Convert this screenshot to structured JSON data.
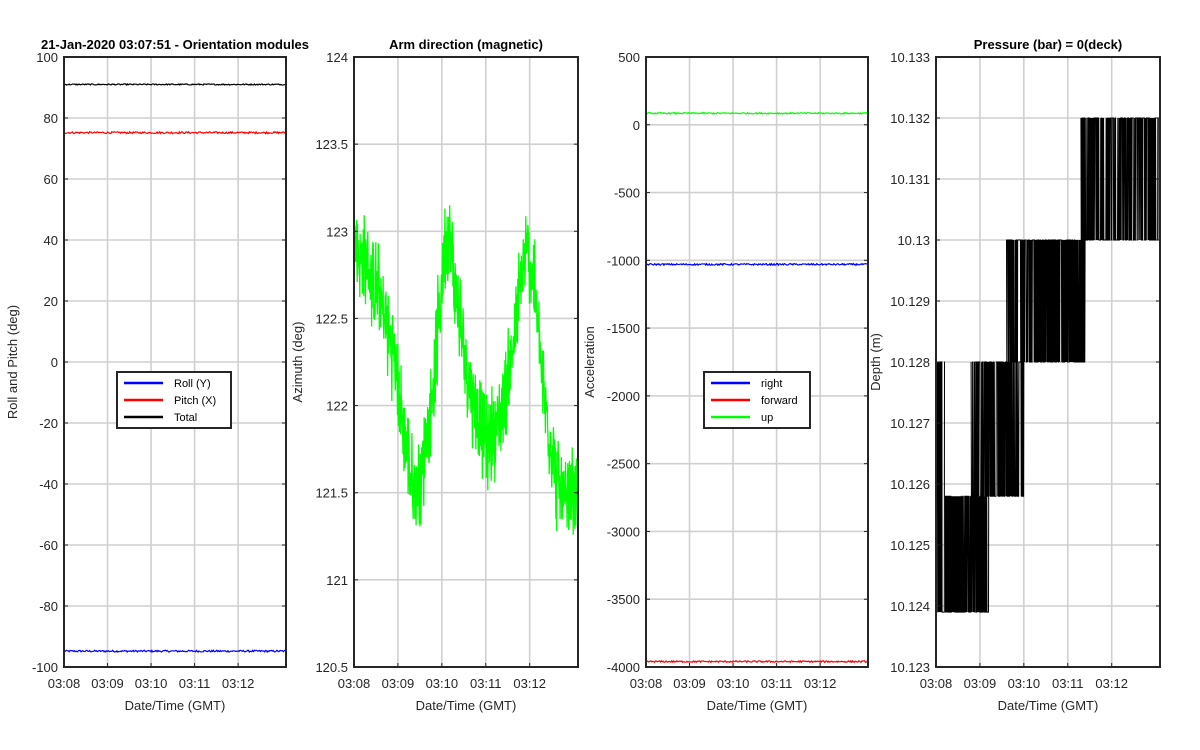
{
  "figure": {
    "background": "#ffffff",
    "x_ticks": [
      "03:08",
      "03:09",
      "03:10",
      "03:11",
      "03:12"
    ],
    "x_label": "Date/Time (GMT)"
  },
  "chart_data": [
    {
      "type": "line",
      "title": "21-Jan-2020 03:07:51 - Orientation modules",
      "xlabel": "Date/Time (GMT)",
      "ylabel": "Roll and Pitch (deg)",
      "x_ticks": [
        "03:08",
        "03:09",
        "03:10",
        "03:11",
        "03:12"
      ],
      "y_ticks": [
        "100",
        "80",
        "60",
        "40",
        "20",
        "0",
        "-20",
        "-40",
        "-60",
        "-80",
        "-100"
      ],
      "ylim": [
        -100,
        100
      ],
      "grid": true,
      "legend_position": "center",
      "legend": [
        {
          "label": "Roll (Y)",
          "color": "#0000ff"
        },
        {
          "label": "Pitch (X)",
          "color": "#ff0000"
        },
        {
          "label": "Total",
          "color": "#000000"
        }
      ],
      "series": [
        {
          "name": "Roll (Y)",
          "color": "#0000ff",
          "shape": "flat",
          "level": -94.8,
          "noise": 0.3
        },
        {
          "name": "Pitch (X)",
          "color": "#ff0000",
          "shape": "flat",
          "level": 75.2,
          "noise": 0.3
        },
        {
          "name": "Total",
          "color": "#000000",
          "shape": "flat",
          "level": 91.0,
          "noise": 0.2
        }
      ]
    },
    {
      "type": "line",
      "title": "Arm direction (magnetic)",
      "xlabel": "Date/Time (GMT)",
      "ylabel": "Azimuth (deg)",
      "x_ticks": [
        "03:08",
        "03:09",
        "03:10",
        "03:11",
        "03:12"
      ],
      "y_ticks": [
        "124",
        "123.5",
        "123",
        "122.5",
        "122",
        "121.5",
        "121",
        "120.5"
      ],
      "ylim": [
        120.5,
        124
      ],
      "grid": true,
      "series": [
        {
          "name": "",
          "color": "#00ff00",
          "shape": "noisy",
          "noise": 0.22,
          "points": [
            [
              0,
              122.9
            ],
            [
              0.3,
              122.8
            ],
            [
              0.6,
              122.6
            ],
            [
              0.9,
              122.3
            ],
            [
              1.1,
              121.9
            ],
            [
              1.35,
              121.5
            ],
            [
              1.5,
              121.55
            ],
            [
              1.7,
              121.9
            ],
            [
              1.9,
              122.4
            ],
            [
              2.05,
              122.9
            ],
            [
              2.15,
              123.0
            ],
            [
              2.3,
              122.7
            ],
            [
              2.5,
              122.3
            ],
            [
              2.75,
              122.0
            ],
            [
              3.0,
              121.8
            ],
            [
              3.3,
              121.9
            ],
            [
              3.6,
              122.3
            ],
            [
              3.8,
              122.7
            ],
            [
              3.95,
              122.9
            ],
            [
              4.1,
              122.7
            ],
            [
              4.3,
              122.1
            ],
            [
              4.6,
              121.6
            ],
            [
              4.8,
              121.4
            ],
            [
              5.0,
              121.5
            ],
            [
              5.1,
              121.5
            ]
          ]
        }
      ]
    },
    {
      "type": "line",
      "title": "",
      "xlabel": "Date/Time (GMT)",
      "ylabel": "Acceleration",
      "x_ticks": [
        "03:08",
        "03:09",
        "03:10",
        "03:11",
        "03:12"
      ],
      "y_ticks": [
        "500",
        "0",
        "-500",
        "-1000",
        "-1500",
        "-2000",
        "-2500",
        "-3000",
        "-3500",
        "-4000"
      ],
      "ylim": [
        -4000,
        500
      ],
      "grid": true,
      "legend_position": "center",
      "legend": [
        {
          "label": "right",
          "color": "#0000ff"
        },
        {
          "label": "forward",
          "color": "#ff0000"
        },
        {
          "label": "up",
          "color": "#00ff00"
        }
      ],
      "series": [
        {
          "name": "right",
          "color": "#0000ff",
          "shape": "flat",
          "level": -1030,
          "noise": 6
        },
        {
          "name": "forward",
          "color": "#ff0000",
          "shape": "flat",
          "level": -3960,
          "noise": 6
        },
        {
          "name": "up",
          "color": "#00ff00",
          "shape": "flat",
          "level": 85,
          "noise": 5
        }
      ]
    },
    {
      "type": "line",
      "title": "Pressure (bar) = 0(deck)",
      "xlabel": "Date/Time (GMT)",
      "ylabel": "Depth (m)",
      "x_ticks": [
        "03:08",
        "03:09",
        "03:10",
        "03:11",
        "03:12"
      ],
      "y_ticks": [
        "10.133",
        "10.132",
        "10.131",
        "10.13",
        "10.129",
        "10.128",
        "10.127",
        "10.126",
        "10.125",
        "10.124",
        "10.123"
      ],
      "ylim": [
        10.123,
        10.133
      ],
      "grid": true,
      "series": [
        {
          "name": "",
          "color": "#000000",
          "shape": "bands",
          "bands": [
            {
              "x0": 0.0,
              "x1": 0.2,
              "lo": 10.1239,
              "hi": 10.128
            },
            {
              "x0": 0.2,
              "x1": 1.2,
              "lo": 10.1239,
              "hi": 10.1258
            },
            {
              "x0": 0.8,
              "x1": 2.0,
              "lo": 10.1258,
              "hi": 10.128
            },
            {
              "x0": 1.6,
              "x1": 3.4,
              "lo": 10.128,
              "hi": 10.13
            },
            {
              "x0": 3.3,
              "x1": 5.1,
              "lo": 10.13,
              "hi": 10.132
            }
          ]
        }
      ]
    }
  ]
}
